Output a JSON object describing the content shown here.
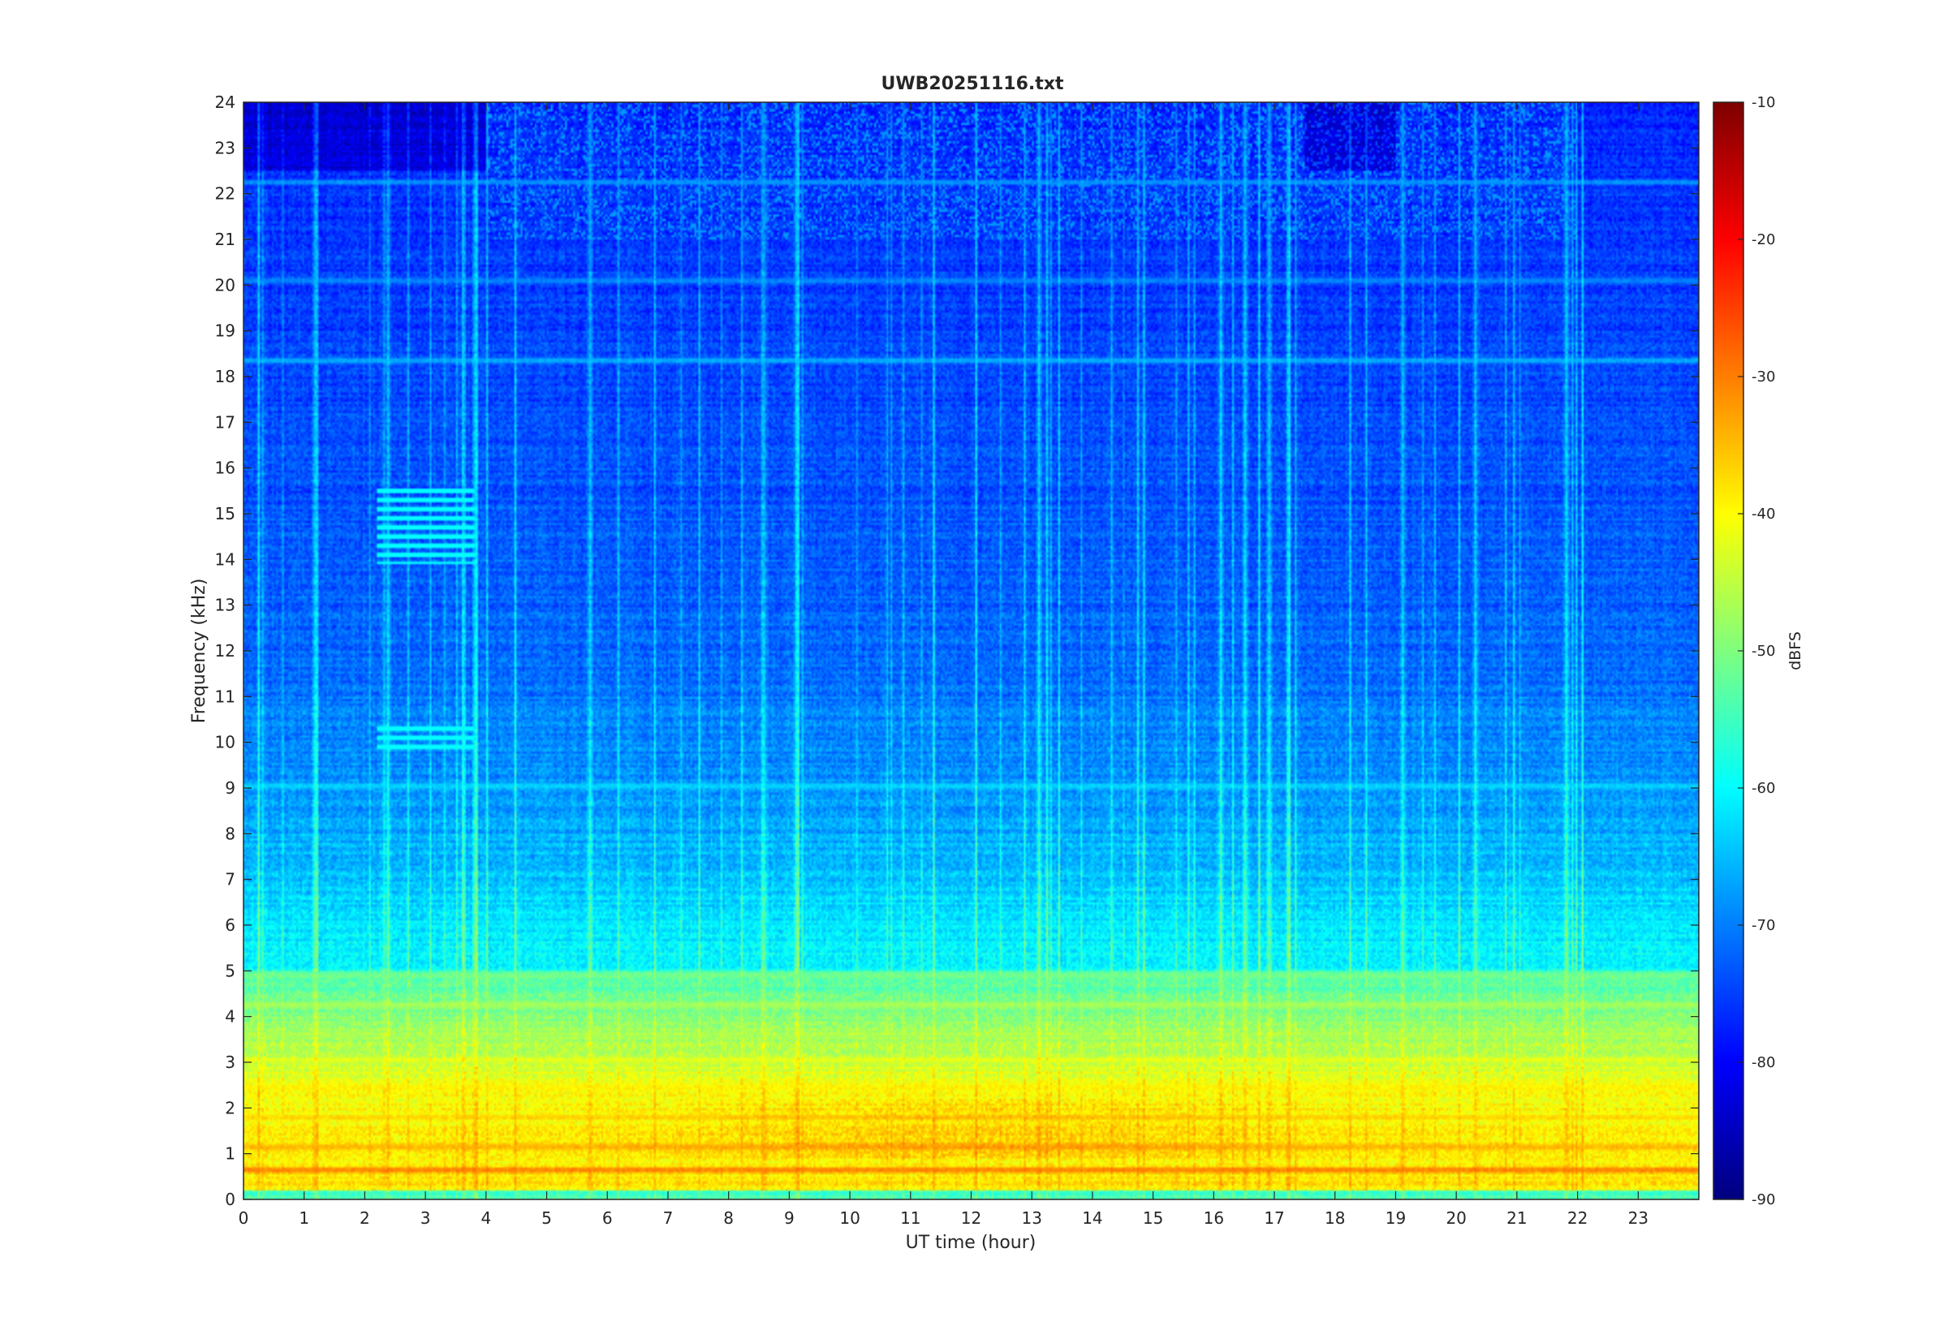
{
  "chart_data": {
    "type": "heatmap",
    "title": "UWB20251116.txt",
    "xlabel": "UT time (hour)",
    "ylabel": "Frequency (kHz)",
    "xlim": [
      0,
      24
    ],
    "ylim": [
      0,
      24
    ],
    "x_ticks": [
      0,
      1,
      2,
      3,
      4,
      5,
      6,
      7,
      8,
      9,
      10,
      11,
      12,
      13,
      14,
      15,
      16,
      17,
      18,
      19,
      20,
      21,
      22,
      23
    ],
    "y_ticks": [
      0,
      1,
      2,
      3,
      4,
      5,
      6,
      7,
      8,
      9,
      10,
      11,
      12,
      13,
      14,
      15,
      16,
      17,
      18,
      19,
      20,
      21,
      22,
      23,
      24
    ],
    "colorbar": {
      "label": "dBFS",
      "clim": [
        -90,
        -10
      ],
      "ticks": [
        -90,
        -80,
        -70,
        -60,
        -50,
        -40,
        -30,
        -20,
        -10
      ],
      "colormap": "jet"
    },
    "bands": [
      {
        "freq_khz": 0.65,
        "level_dbfs": -28
      },
      {
        "freq_khz": 1.15,
        "level_dbfs": -33
      },
      {
        "freq_khz": 1.8,
        "level_dbfs": -36
      },
      {
        "freq_khz": 2.45,
        "level_dbfs": -38
      },
      {
        "freq_khz": 3.05,
        "level_dbfs": -42
      },
      {
        "freq_khz": 3.6,
        "level_dbfs": -47
      },
      {
        "freq_khz": 4.25,
        "level_dbfs": -46
      },
      {
        "freq_khz": 4.9,
        "level_dbfs": -50
      },
      {
        "freq_khz": 6.0,
        "level_dbfs": -62
      },
      {
        "freq_khz": 9.05,
        "level_dbfs": -62
      },
      {
        "freq_khz": 18.35,
        "level_dbfs": -64
      },
      {
        "freq_khz": 20.1,
        "level_dbfs": -68
      },
      {
        "freq_khz": 22.25,
        "level_dbfs": -66
      }
    ]
  },
  "colors": {
    "axis": "#262626",
    "background": "#ffffff"
  }
}
